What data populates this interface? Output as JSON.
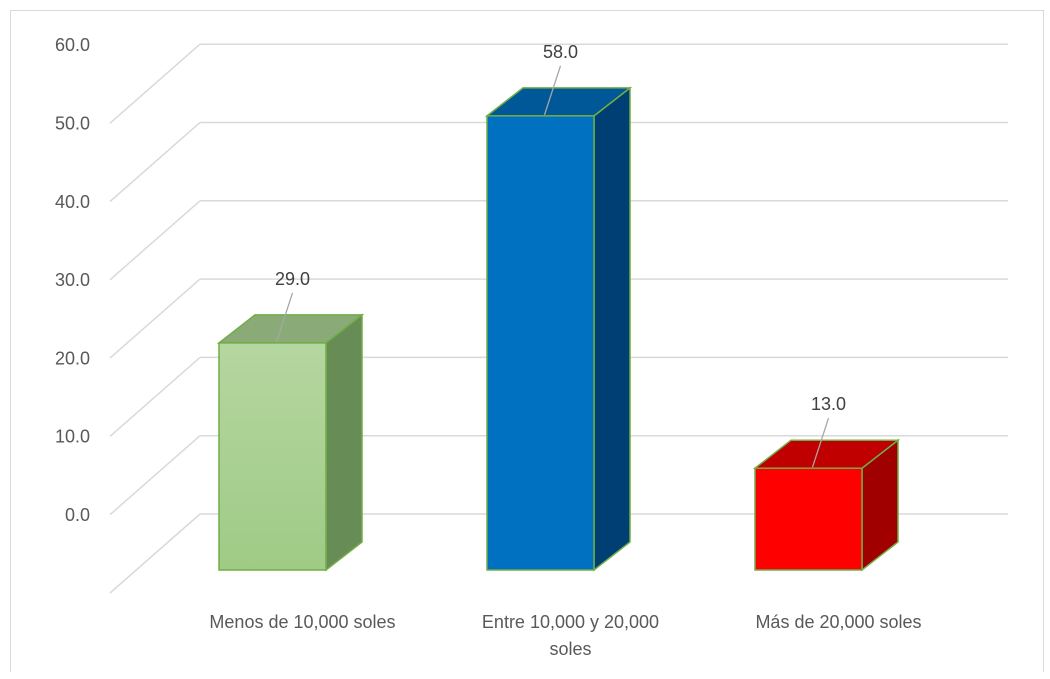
{
  "chart_data": {
    "type": "bar",
    "title": "",
    "xlabel": "",
    "ylabel": "",
    "categories": [
      "Menos de 10,000 soles",
      "Entre 10,000 y 20,000 soles",
      "Más de 20,000 soles"
    ],
    "category_lines": [
      [
        "Menos de 10,000 soles"
      ],
      [
        "Entre 10,000 y 20,000",
        "soles"
      ],
      [
        "Más de 20,000 soles"
      ]
    ],
    "values": [
      29.0,
      58.0,
      13.0
    ],
    "value_labels": [
      "29.0",
      "58.0",
      "13.0"
    ],
    "ylim": [
      0,
      60
    ],
    "yticks": [
      "0.0",
      "10.0",
      "20.0",
      "30.0",
      "40.0",
      "50.0",
      "60.0"
    ],
    "grid": true,
    "three_d": true,
    "colors": [
      {
        "front": "#a9d18e",
        "side": "#688c55",
        "top": "#8aaa78"
      },
      {
        "front": "#0070c0",
        "side": "#003f73",
        "top": "#005898"
      },
      {
        "front": "#ff0000",
        "side": "#a00000",
        "top": "#c00000"
      }
    ],
    "bar_outline": "#70ad47",
    "grid_color": "#d9d9d9"
  }
}
